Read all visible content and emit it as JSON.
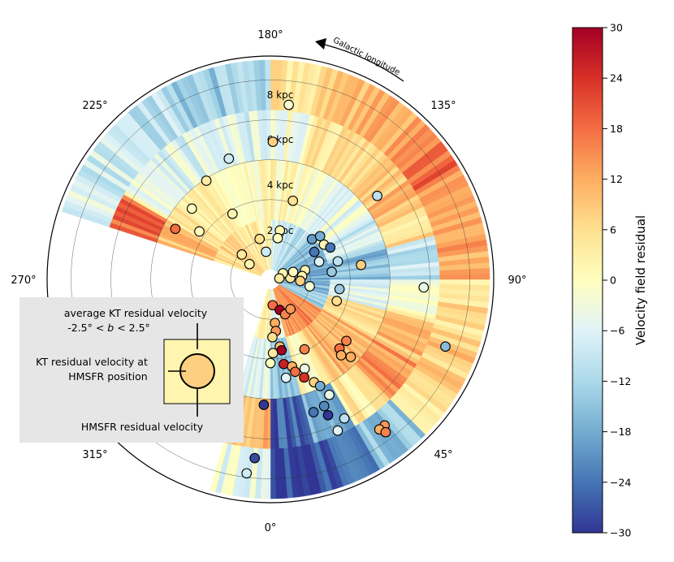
{
  "chart_data": {
    "type": "polar-heatmap-scatter",
    "title": "",
    "angle_axis": {
      "name": "Galactic longitude",
      "direction": "counter-clockwise",
      "ticks": [
        {
          "deg": 0,
          "label": "0°"
        },
        {
          "deg": 45,
          "label": "45°"
        },
        {
          "deg": 90,
          "label": "90°"
        },
        {
          "deg": 135,
          "label": "135°"
        },
        {
          "deg": 180,
          "label": "180°"
        },
        {
          "deg": 225,
          "label": "225°"
        },
        {
          "deg": 270,
          "label": "270°"
        },
        {
          "deg": 315,
          "label": "315°"
        }
      ],
      "arrow_label": "Galactic longitude"
    },
    "radial_axis": {
      "unit": "kpc",
      "max": 11.2,
      "ticks": [
        {
          "value": 2,
          "label": "2 kpc"
        },
        {
          "value": 4,
          "label": "4 kpc"
        },
        {
          "value": 6,
          "label": "6 kpc"
        },
        {
          "value": 8,
          "label": "8 kpc"
        },
        {
          "value": 10,
          "label": ""
        }
      ]
    },
    "field": {
      "description": "average KT residual velocity, -2.5° < b < 2.5°",
      "sectors": [
        {
          "l_start": 0,
          "l_end": 15,
          "rings": [
            {
              "r0": 0.5,
              "r1": 3,
              "v": -4
            },
            {
              "r0": 3,
              "r1": 6,
              "v": -14
            },
            {
              "r0": 6,
              "r1": 8.5,
              "v": -26
            },
            {
              "r0": 8.5,
              "r1": 11,
              "v": -29
            }
          ]
        },
        {
          "l_start": 15,
          "l_end": 30,
          "rings": [
            {
              "r0": 0.5,
              "r1": 3,
              "v": 14
            },
            {
              "r0": 3,
              "r1": 6,
              "v": 2
            },
            {
              "r0": 6,
              "r1": 8.5,
              "v": -18
            },
            {
              "r0": 8.5,
              "r1": 11,
              "v": -26
            }
          ]
        },
        {
          "l_start": 30,
          "l_end": 45,
          "rings": [
            {
              "r0": 0.5,
              "r1": 3,
              "v": 16
            },
            {
              "r0": 3,
              "r1": 6,
              "v": 10
            },
            {
              "r0": 6,
              "r1": 8.5,
              "v": 4
            },
            {
              "r0": 8.5,
              "r1": 11,
              "v": -14
            }
          ]
        },
        {
          "l_start": 45,
          "l_end": 60,
          "rings": [
            {
              "r0": 0.5,
              "r1": 3,
              "v": 16
            },
            {
              "r0": 3,
              "r1": 6,
              "v": 12
            },
            {
              "r0": 6,
              "r1": 8.5,
              "v": 14
            },
            {
              "r0": 8.5,
              "r1": 11,
              "v": 6
            }
          ]
        },
        {
          "l_start": 60,
          "l_end": 75,
          "rings": [
            {
              "r0": 0.5,
              "r1": 3,
              "v": -14
            },
            {
              "r0": 3,
              "r1": 6,
              "v": 4
            },
            {
              "r0": 6,
              "r1": 8.5,
              "v": 10
            },
            {
              "r0": 8.5,
              "r1": 11,
              "v": 8
            }
          ]
        },
        {
          "l_start": 75,
          "l_end": 90,
          "rings": [
            {
              "r0": 0.5,
              "r1": 3,
              "v": -16
            },
            {
              "r0": 3,
              "r1": 6,
              "v": -6
            },
            {
              "r0": 6,
              "r1": 8.5,
              "v": 0
            },
            {
              "r0": 8.5,
              "r1": 11,
              "v": 6
            }
          ]
        },
        {
          "l_start": 90,
          "l_end": 105,
          "rings": [
            {
              "r0": 0.5,
              "r1": 3,
              "v": -18
            },
            {
              "r0": 3,
              "r1": 6,
              "v": -16
            },
            {
              "r0": 6,
              "r1": 8.5,
              "v": -10
            },
            {
              "r0": 8.5,
              "r1": 11,
              "v": 12
            }
          ]
        },
        {
          "l_start": 105,
          "l_end": 120,
          "rings": [
            {
              "r0": 0.5,
              "r1": 3,
              "v": -18
            },
            {
              "r0": 3,
              "r1": 6,
              "v": -8
            },
            {
              "r0": 6,
              "r1": 8.5,
              "v": 6
            },
            {
              "r0": 8.5,
              "r1": 11,
              "v": 14
            }
          ]
        },
        {
          "l_start": 120,
          "l_end": 135,
          "rings": [
            {
              "r0": 0.5,
              "r1": 3,
              "v": -14
            },
            {
              "r0": 3,
              "r1": 6,
              "v": -4
            },
            {
              "r0": 6,
              "r1": 8.5,
              "v": 10
            },
            {
              "r0": 8.5,
              "r1": 11,
              "v": 18
            }
          ]
        },
        {
          "l_start": 135,
          "l_end": 150,
          "rings": [
            {
              "r0": 0.5,
              "r1": 3,
              "v": -10
            },
            {
              "r0": 3,
              "r1": 6,
              "v": -4
            },
            {
              "r0": 6,
              "r1": 8.5,
              "v": 6
            },
            {
              "r0": 8.5,
              "r1": 11,
              "v": 12
            }
          ]
        },
        {
          "l_start": 150,
          "l_end": 165,
          "rings": [
            {
              "r0": 0.5,
              "r1": 3,
              "v": -8
            },
            {
              "r0": 3,
              "r1": 6,
              "v": 0
            },
            {
              "r0": 6,
              "r1": 8.5,
              "v": 4
            },
            {
              "r0": 8.5,
              "r1": 11,
              "v": 10
            }
          ]
        },
        {
          "l_start": 165,
          "l_end": 180,
          "rings": [
            {
              "r0": 0.5,
              "r1": 3,
              "v": -6
            },
            {
              "r0": 3,
              "r1": 6,
              "v": 2
            },
            {
              "r0": 6,
              "r1": 8.5,
              "v": -2
            },
            {
              "r0": 8.5,
              "r1": 11,
              "v": 6
            }
          ]
        },
        {
          "l_start": 180,
          "l_end": 195,
          "rings": [
            {
              "r0": 0.5,
              "r1": 3,
              "v": 2
            },
            {
              "r0": 3,
              "r1": 6,
              "v": 0
            },
            {
              "r0": 6,
              "r1": 8.5,
              "v": -6
            },
            {
              "r0": 8.5,
              "r1": 11,
              "v": -12
            }
          ]
        },
        {
          "l_start": 195,
          "l_end": 210,
          "rings": [
            {
              "r0": 0.5,
              "r1": 3,
              "v": 4
            },
            {
              "r0": 3,
              "r1": 6,
              "v": 2
            },
            {
              "r0": 6,
              "r1": 8.5,
              "v": -4
            },
            {
              "r0": 8.5,
              "r1": 11,
              "v": -14
            }
          ]
        },
        {
          "l_start": 210,
          "l_end": 225,
          "rings": [
            {
              "r0": 0.5,
              "r1": 3,
              "v": 6
            },
            {
              "r0": 3,
              "r1": 6,
              "v": 2
            },
            {
              "r0": 6,
              "r1": 8.5,
              "v": -6
            },
            {
              "r0": 8.5,
              "r1": 11,
              "v": -10
            }
          ]
        },
        {
          "l_start": 225,
          "l_end": 240,
          "rings": [
            {
              "r0": 0.5,
              "r1": 3,
              "v": 8
            },
            {
              "r0": 3,
              "r1": 6,
              "v": 4
            },
            {
              "r0": 6,
              "r1": 8.5,
              "v": -2
            },
            {
              "r0": 8.5,
              "r1": 11,
              "v": -8
            }
          ]
        },
        {
          "l_start": 240,
          "l_end": 252,
          "rings": [
            {
              "r0": 0.5,
              "r1": 3,
              "v": 6
            },
            {
              "r0": 3,
              "r1": 6,
              "v": 10
            },
            {
              "r0": 6,
              "r1": 8.5,
              "v": 18
            },
            {
              "r0": 8.5,
              "r1": 11,
              "v": -6
            }
          ]
        },
        {
          "l_start": 344,
          "l_end": 360,
          "rings": [
            {
              "r0": 0.5,
              "r1": 3,
              "v": 2
            },
            {
              "r0": 3,
              "r1": 6,
              "v": -6
            },
            {
              "r0": 6,
              "r1": 8.5,
              "v": 10
            },
            {
              "r0": 8.5,
              "r1": 11,
              "v": -4
            }
          ]
        }
      ]
    },
    "points": [
      {
        "l": 174,
        "r": 8.8,
        "v": -2
      },
      {
        "l": 179,
        "r": 6.9,
        "v": 8
      },
      {
        "l": 199,
        "r": 6.4,
        "v": -8
      },
      {
        "l": 213,
        "r": 5.9,
        "v": 4
      },
      {
        "l": 228,
        "r": 5.3,
        "v": 0
      },
      {
        "l": 242,
        "r": 5.4,
        "v": 18
      },
      {
        "l": 236,
        "r": 4.3,
        "v": 0
      },
      {
        "l": 210,
        "r": 3.8,
        "v": 2
      },
      {
        "l": 164,
        "r": 4.1,
        "v": 6
      },
      {
        "l": 128,
        "r": 6.8,
        "v": -10
      },
      {
        "l": 169,
        "r": 2.5,
        "v": 2
      },
      {
        "l": 170,
        "r": 2.1,
        "v": 0
      },
      {
        "l": 195,
        "r": 2.1,
        "v": 6
      },
      {
        "l": 189,
        "r": 1.4,
        "v": -8
      },
      {
        "l": 229,
        "r": 1.9,
        "v": 4
      },
      {
        "l": 234,
        "r": 1.3,
        "v": 2
      },
      {
        "l": 134,
        "r": 2.9,
        "v": -20
      },
      {
        "l": 123,
        "r": 3.2,
        "v": 2
      },
      {
        "l": 131,
        "r": 3.3,
        "v": -18
      },
      {
        "l": 122,
        "r": 2.6,
        "v": -24
      },
      {
        "l": 118,
        "r": 3.4,
        "v": -24
      },
      {
        "l": 110,
        "r": 2.6,
        "v": -6
      },
      {
        "l": 105,
        "r": 3.5,
        "v": -10
      },
      {
        "l": 97,
        "r": 3.1,
        "v": -14
      },
      {
        "l": 99,
        "r": 4.6,
        "v": 8
      },
      {
        "l": 105,
        "r": 1.8,
        "v": 2
      },
      {
        "l": 80,
        "r": 2.0,
        "v": -2
      },
      {
        "l": 96,
        "r": 1.6,
        "v": 2
      },
      {
        "l": 87,
        "r": 1.5,
        "v": 8
      },
      {
        "l": 94,
        "r": 1.0,
        "v": 4
      },
      {
        "l": 116,
        "r": 0.7,
        "v": 2
      },
      {
        "l": 97,
        "r": 0.45,
        "v": 4
      },
      {
        "l": 108,
        "r": 1.2,
        "v": 0
      },
      {
        "l": 82,
        "r": 3.5,
        "v": -14
      },
      {
        "l": 72,
        "r": 3.5,
        "v": 6
      },
      {
        "l": 87,
        "r": 7.7,
        "v": -4
      },
      {
        "l": 69,
        "r": 9.4,
        "v": -16
      },
      {
        "l": 5,
        "r": 1.3,
        "v": 18
      },
      {
        "l": 17,
        "r": 1.6,
        "v": 30
      },
      {
        "l": 23,
        "r": 1.9,
        "v": 16
      },
      {
        "l": 6,
        "r": 2.2,
        "v": 12
      },
      {
        "l": 6,
        "r": 2.6,
        "v": 14
      },
      {
        "l": 2,
        "r": 2.9,
        "v": 6
      },
      {
        "l": 8,
        "r": 3.4,
        "v": 10
      },
      {
        "l": 2,
        "r": 3.7,
        "v": 4
      },
      {
        "l": 9,
        "r": 3.6,
        "v": 30
      },
      {
        "l": 0,
        "r": 4.2,
        "v": 0
      },
      {
        "l": 9,
        "r": 4.3,
        "v": 26
      },
      {
        "l": 34,
        "r": 1.8,
        "v": 14
      },
      {
        "l": 26,
        "r": 3.9,
        "v": 16
      },
      {
        "l": 21,
        "r": 4.8,
        "v": -4
      },
      {
        "l": 19,
        "r": 5.2,
        "v": 24
      },
      {
        "l": 23,
        "r": 5.6,
        "v": 8
      },
      {
        "l": 14,
        "r": 4.5,
        "v": 12
      },
      {
        "l": 15,
        "r": 4.8,
        "v": 18
      },
      {
        "l": 9,
        "r": 5.0,
        "v": -6
      },
      {
        "l": 25,
        "r": 5.9,
        "v": -18
      },
      {
        "l": 27,
        "r": 6.5,
        "v": -4
      },
      {
        "l": 23,
        "r": 6.9,
        "v": -22
      },
      {
        "l": 23,
        "r": 7.4,
        "v": -30
      },
      {
        "l": 18,
        "r": 7.0,
        "v": -24
      },
      {
        "l": 28,
        "r": 7.9,
        "v": -10
      },
      {
        "l": 24,
        "r": 8.3,
        "v": -6
      },
      {
        "l": 45,
        "r": 4.9,
        "v": 18
      },
      {
        "l": 43,
        "r": 5.2,
        "v": 12
      },
      {
        "l": 46,
        "r": 5.6,
        "v": 12
      },
      {
        "l": 51,
        "r": 4.9,
        "v": 16
      },
      {
        "l": 38,
        "r": 9.3,
        "v": 14
      },
      {
        "l": 36,
        "r": 9.3,
        "v": 12
      },
      {
        "l": 37,
        "r": 9.6,
        "v": 16
      },
      {
        "l": 357,
        "r": 6.3,
        "v": -30
      },
      {
        "l": 355,
        "r": 9.0,
        "v": -28
      },
      {
        "l": 353,
        "r": 9.8,
        "v": -8
      }
    ],
    "colorbar": {
      "label": "Velocity field residual",
      "min": -30,
      "max": 30,
      "ticks": [
        "30",
        "24",
        "18",
        "12",
        "6",
        "0",
        "−6",
        "−12",
        "−18",
        "−24",
        "−30"
      ],
      "colormap": "RdYlBu_r"
    },
    "legend": {
      "label_top_1": "average KT residual velocity",
      "label_top_2_pre": "-2.5° < ",
      "label_top_2_var": "b",
      "label_top_2_post": " < 2.5°",
      "label_left_1": "KT residual velocity at",
      "label_left_2": "HMSFR position",
      "label_bottom": "HMSFR residual velocity",
      "example_outer_v": 2,
      "example_inner_v": 8
    }
  }
}
